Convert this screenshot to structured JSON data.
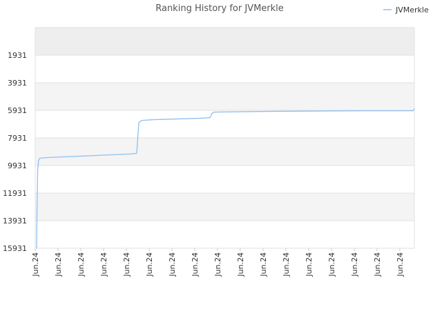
{
  "chart_data": {
    "type": "line",
    "title": "Ranking History for JVMerkle",
    "x": [
      0.06,
      0.08,
      0.11,
      0.15,
      0.21,
      0.58,
      1.27,
      2.03,
      2.73,
      3.42,
      4.12,
      4.45,
      4.48,
      4.52,
      4.55,
      4.67,
      5.18,
      6.18,
      7.18,
      7.67,
      7.76,
      7.85,
      10.03,
      14.39,
      16.58,
      16.64
    ],
    "series": [
      {
        "name": "JVMerkle",
        "color": "#8fbff0",
        "values": [
          15931,
          12940,
          10200,
          9550,
          9400,
          9350,
          9300,
          9250,
          9200,
          9150,
          9100,
          9050,
          8460,
          7460,
          6810,
          6660,
          6610,
          6560,
          6510,
          6460,
          6160,
          6060,
          6010,
          5960,
          5960,
          5810
        ]
      }
    ],
    "xlim": [
      0,
      16.64
    ],
    "xticks": [
      {
        "value": 0,
        "label": "Jun.24"
      },
      {
        "value": 1,
        "label": "Jun.24"
      },
      {
        "value": 2,
        "label": "Jun.24"
      },
      {
        "value": 3,
        "label": "Jun.24"
      },
      {
        "value": 4,
        "label": "Jun.24"
      },
      {
        "value": 5,
        "label": "Jun.24"
      },
      {
        "value": 6,
        "label": "Jun.24"
      },
      {
        "value": 7,
        "label": "Jun.24"
      },
      {
        "value": 8,
        "label": "Jun.24"
      },
      {
        "value": 9,
        "label": "Jun.24"
      },
      {
        "value": 10,
        "label": "Jun.24"
      },
      {
        "value": 11,
        "label": "Jun.24"
      },
      {
        "value": 12,
        "label": "Jun.24"
      },
      {
        "value": 13,
        "label": "Jun.24"
      },
      {
        "value": 14,
        "label": "Jun.24"
      },
      {
        "value": 15,
        "label": "Jun.24"
      },
      {
        "value": 16,
        "label": "Jun.24"
      }
    ],
    "ylim": [
      15931,
      -69
    ],
    "yticks": [
      1931,
      3931,
      5931,
      7931,
      9931,
      11931,
      13931,
      15931
    ],
    "grid": true,
    "legend": "top-right"
  }
}
